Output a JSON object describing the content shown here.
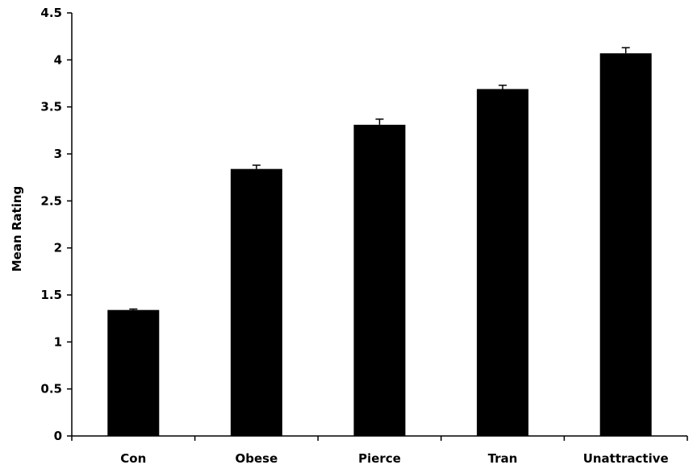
{
  "chart_data": {
    "type": "bar",
    "title": "",
    "xlabel": "",
    "ylabel": "Mean Rating",
    "categories": [
      "Con",
      "Obese",
      "Pierce",
      "Tran",
      "Unattractive"
    ],
    "values": [
      1.34,
      2.84,
      3.31,
      3.69,
      4.07
    ],
    "errors": [
      0.01,
      0.04,
      0.06,
      0.04,
      0.06
    ],
    "ylim": [
      0,
      4.5
    ],
    "yticks": [
      0,
      0.5,
      1,
      1.5,
      2,
      2.5,
      3,
      3.5,
      4,
      4.5
    ],
    "ytick_labels": [
      "0",
      "0.5",
      "1",
      "1.5",
      "2",
      "2.5",
      "3",
      "3.5",
      "4",
      "4.5"
    ],
    "grid": false,
    "legend": "none",
    "bar_color": "#000000"
  }
}
